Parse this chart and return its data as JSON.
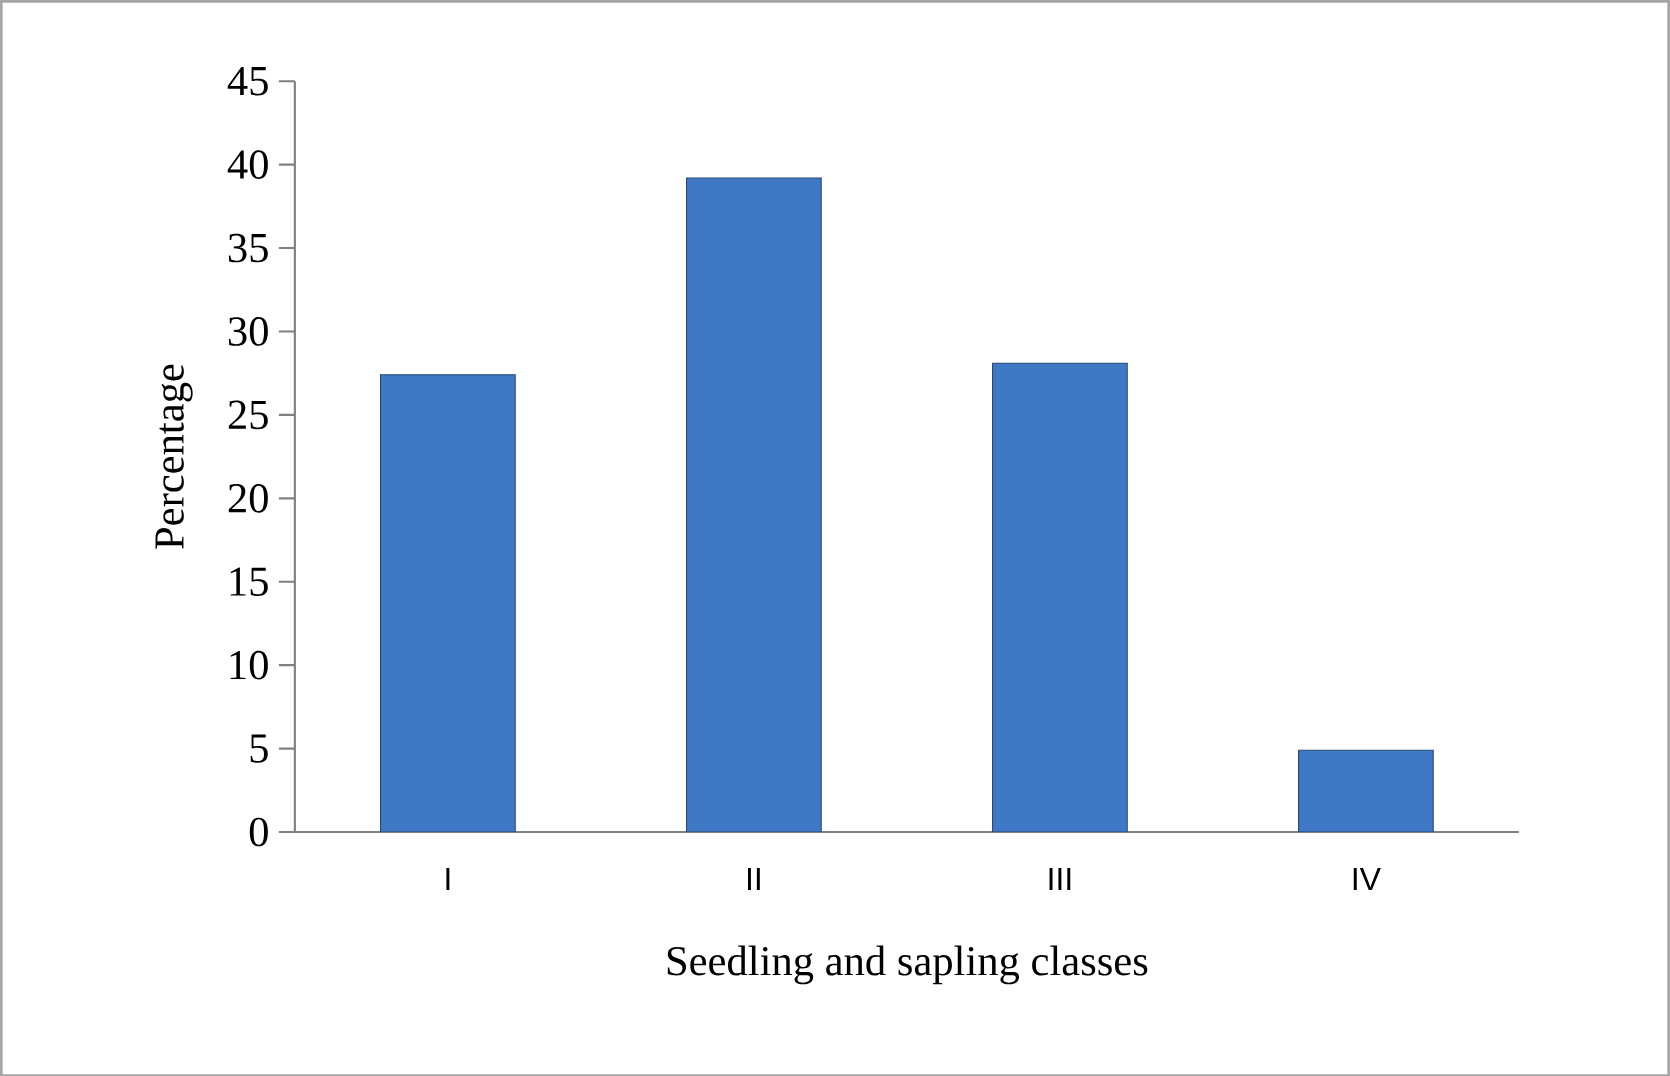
{
  "chart_data": {
    "type": "bar",
    "xlabel": "Seedling and sapling classes",
    "ylabel": "Percentage",
    "categories": [
      "I",
      "II",
      "III",
      "IV"
    ],
    "values": [
      27.4,
      39.2,
      28.1,
      4.9
    ],
    "color": "#3f78c4",
    "ylim": [
      0,
      45
    ],
    "yticks": [
      0,
      5,
      10,
      15,
      20,
      25,
      30,
      35,
      40,
      45
    ],
    "grid": false
  }
}
